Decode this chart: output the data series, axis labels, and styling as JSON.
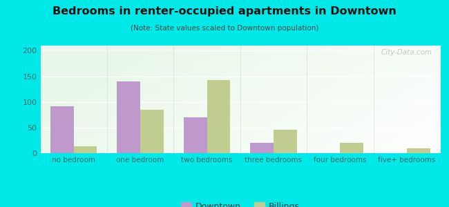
{
  "title": "Bedrooms in renter-occupied apartments in Downtown",
  "subtitle": "(Note: State values scaled to Downtown population)",
  "categories": [
    "no bedroom",
    "one bedroom",
    "two bedrooms",
    "three bedrooms",
    "four bedrooms",
    "five+ bedrooms"
  ],
  "downtown_values": [
    92,
    140,
    70,
    20,
    0,
    0
  ],
  "billings_values": [
    13,
    85,
    143,
    46,
    20,
    10
  ],
  "downtown_color": "#c099cc",
  "billings_color": "#c0cc90",
  "background_outer": "#00e8e8",
  "ylim": [
    0,
    210
  ],
  "yticks": [
    0,
    50,
    100,
    150,
    200
  ],
  "bar_width": 0.35,
  "legend_labels": [
    "Downtown",
    "Billings"
  ],
  "watermark": "City-Data.com"
}
